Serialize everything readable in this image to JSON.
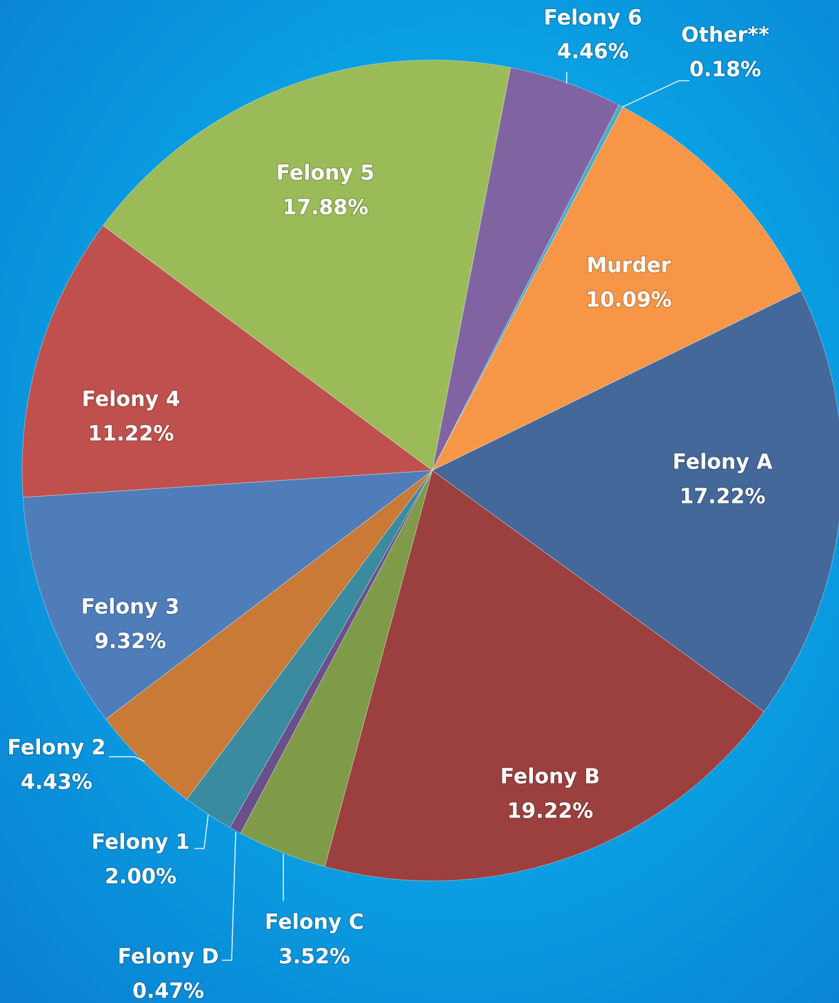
{
  "chart_data": {
    "type": "pie",
    "categories": [
      "Felony 6",
      "Other**",
      "Murder",
      "Felony A",
      "Felony B",
      "Felony C",
      "Felony D",
      "Felony 1",
      "Felony 2",
      "Felony 3",
      "Felony 4",
      "Felony 5"
    ],
    "values": [
      4.46,
      0.18,
      10.09,
      17.22,
      19.22,
      3.52,
      0.47,
      2.0,
      4.43,
      9.32,
      11.22,
      17.88
    ],
    "value_labels": [
      "4.46%",
      "0.18%",
      "10.09%",
      "17.22%",
      "19.22%",
      "3.52%",
      "0.47%",
      "2.00%",
      "4.43%",
      "9.32%",
      "11.22%",
      "17.88%"
    ],
    "colors": [
      "#8064a2",
      "#4bacc6",
      "#f79646",
      "#44689a",
      "#9b403e",
      "#7f9a48",
      "#6a4f8a",
      "#3a8aa0",
      "#c87a36",
      "#4f7dba",
      "#c0504d",
      "#9bbb59"
    ]
  }
}
